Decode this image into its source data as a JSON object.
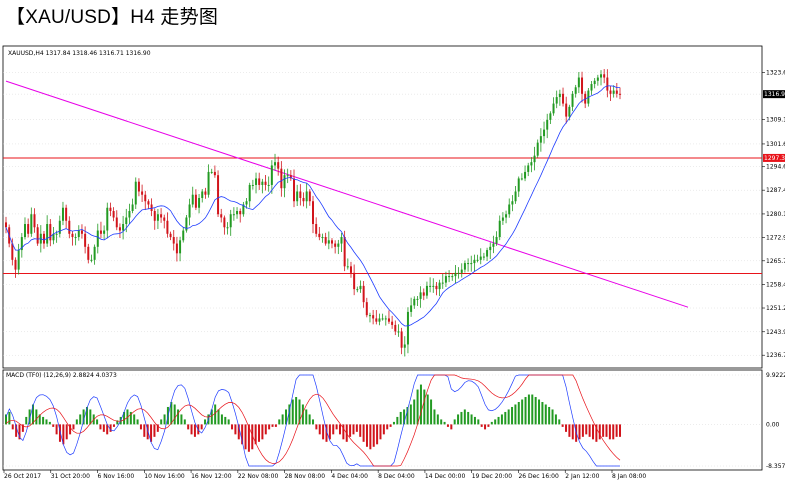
{
  "title": "【XAU/USD】H4 走势图",
  "chart_data": {
    "type": "candlestick",
    "symbol_header": "XAUUSD,H4  1317.84  1318.46  1316.71  1316.90",
    "ohlc_header": {
      "open": 1317.84,
      "high": 1318.46,
      "low": 1316.71,
      "close": 1316.9
    },
    "price_axis": {
      "ticks": [
        "1323.6",
        "1316.90",
        "1309.1",
        "1301.6",
        "1294.6",
        "1287.4",
        "1280.1",
        "1272.9",
        "1265.7",
        "1258.4",
        "1251.2",
        "1243.9",
        "1236.7"
      ],
      "ylim": [
        1234.0,
        1328.0
      ],
      "last_price": "1316.90"
    },
    "time_axis": {
      "labels": [
        "26 Oct 2017",
        "31 Oct 20:00",
        "6 Nov 16:00",
        "10 Nov 16:00",
        "16 Nov 12:00",
        "22 Nov 08:00",
        "28 Nov 08:00",
        "4 Dec 04:00",
        "8 Dec 04:00",
        "14 Dec 00:00",
        "19 Dec 20:00",
        "26 Dec 16:00",
        "2 Jan 12:00",
        "8 Jan 08:00"
      ]
    },
    "horizontal_lines": [
      {
        "price": 1297.3,
        "label": "1297.3",
        "color": "#e8131a"
      },
      {
        "price": 1261.8,
        "color": "#e8131a"
      }
    ],
    "trendline": {
      "color": "#e800e8",
      "from": {
        "bar": 0,
        "price": 1320.9
      },
      "to": {
        "bar": 206,
        "price": 1254.5
      }
    },
    "moving_average": {
      "color": "#1f3dff"
    },
    "series": [
      {
        "name": "XAUUSD",
        "close": [
          1276,
          1271,
          1266,
          1263,
          1269,
          1273,
          1277,
          1274,
          1280,
          1276,
          1271,
          1274,
          1271,
          1277,
          1272,
          1274,
          1274,
          1278,
          1282,
          1278,
          1274,
          1273,
          1273,
          1275,
          1274,
          1270,
          1266,
          1266,
          1270,
          1275,
          1274,
          1275,
          1282,
          1281,
          1279,
          1276,
          1275,
          1277,
          1279,
          1281,
          1283,
          1290,
          1287,
          1286,
          1284,
          1283,
          1281,
          1278,
          1280,
          1279,
          1278,
          1274,
          1273,
          1271,
          1268,
          1272,
          1275,
          1279,
          1283,
          1286,
          1282,
          1285,
          1287,
          1286,
          1293,
          1293,
          1292,
          1280,
          1279,
          1276,
          1276,
          1280,
          1280,
          1281,
          1280,
          1283,
          1284,
          1289,
          1289,
          1291,
          1289,
          1290,
          1289,
          1289,
          1295,
          1296,
          1294,
          1288,
          1292,
          1292,
          1291,
          1284,
          1287,
          1285,
          1284,
          1287,
          1284,
          1277,
          1274,
          1273,
          1273,
          1271,
          1272,
          1271,
          1270,
          1271,
          1273,
          1264,
          1264,
          1262,
          1257,
          1257,
          1258,
          1253,
          1249,
          1249,
          1248,
          1247,
          1248,
          1248,
          1248,
          1247,
          1246,
          1244,
          1244,
          1239,
          1240,
          1250,
          1252,
          1254,
          1254,
          1256,
          1255,
          1258,
          1258,
          1258,
          1257,
          1259,
          1259,
          1261,
          1261,
          1261,
          1262,
          1262,
          1263,
          1265,
          1265,
          1265,
          1266,
          1266,
          1267,
          1267,
          1269,
          1270,
          1271,
          1273,
          1278,
          1279,
          1280,
          1283,
          1284,
          1287,
          1291,
          1291,
          1293,
          1295,
          1296,
          1298,
          1302,
          1304,
          1306,
          1309,
          1311,
          1314,
          1316,
          1317,
          1314,
          1310,
          1313,
          1317,
          1319,
          1322,
          1317,
          1314,
          1318,
          1320,
          1321,
          1322,
          1323,
          1322,
          1318,
          1317,
          1318,
          1317,
          1316.9
        ]
      }
    ],
    "macd": {
      "label": "MACD (TF0) (12,26,9) 2.8824 4.0373",
      "axis_ticks": [
        "9.9222",
        "0.00",
        "-8.357"
      ],
      "ylim": [
        -8.357,
        9.9222
      ],
      "hist": [
        2.0,
        2.5,
        -1.0,
        -2.5,
        -3.0,
        -1.5,
        1.5,
        3.0,
        4.0,
        3.0,
        2.0,
        1.5,
        1.0,
        0.5,
        -0.5,
        -2.0,
        -3.5,
        -4.0,
        -3.0,
        -2.0,
        -1.0,
        1.0,
        2.0,
        3.0,
        3.5,
        3.0,
        2.0,
        1.0,
        -1.0,
        -1.5,
        -2.0,
        -1.5,
        -0.5,
        0.8,
        1.5,
        2.5,
        3.0,
        2.5,
        2.0,
        1.0,
        -1.0,
        -2.5,
        -3.0,
        -3.5,
        -2.5,
        -1.5,
        1.0,
        2.0,
        3.5,
        4.5,
        4.0,
        3.0,
        2.0,
        1.0,
        -1.0,
        -2.0,
        -2.5,
        -2.0,
        -1.0,
        1.0,
        2.0,
        3.0,
        4.0,
        3.0,
        2.0,
        1.5,
        1.0,
        -1.0,
        -2.0,
        -3.0,
        -4.0,
        -5.0,
        -5.5,
        -5.0,
        -4.0,
        -3.5,
        -3.0,
        -2.0,
        -1.0,
        -0.5,
        -0.5,
        1.0,
        2.0,
        3.0,
        4.0,
        5.0,
        5.5,
        5.0,
        4.0,
        3.0,
        2.0,
        1.0,
        -1.0,
        -2.0,
        -3.0,
        -3.5,
        -3.0,
        -2.0,
        -1.0,
        -2.0,
        -3.0,
        -3.5,
        -2.5,
        -2.0,
        -1.5,
        -2.5,
        -3.5,
        -4.5,
        -5.0,
        -4.5,
        -4.0,
        -3.0,
        -2.0,
        -1.0,
        -0.5,
        0.5,
        1.5,
        2.5,
        3.0,
        3.5,
        4.0,
        5.0,
        7.0,
        8.0,
        7.0,
        6.0,
        5.0,
        3.0,
        2.0,
        1.0,
        0.5,
        -0.5,
        -1.0,
        1.0,
        2.0,
        2.5,
        3.0,
        2.5,
        2.0,
        1.5,
        1.0,
        -0.5,
        -1.0,
        -0.5,
        0.5,
        1.0,
        1.5,
        2.0,
        2.5,
        3.0,
        3.5,
        4.0,
        4.5,
        5.0,
        5.5,
        6.0,
        6.0,
        5.5,
        5.0,
        4.5,
        4.0,
        3.5,
        3.0,
        2.0,
        1.0,
        -0.5,
        -1.5,
        -2.5,
        -3.0,
        -3.5,
        -3.0,
        -2.5,
        -2.0,
        -2.5,
        -3.0,
        -3.5,
        -3.0,
        -2.5,
        -2.5,
        -3.0,
        -3.0,
        -2.5,
        -2.5
      ],
      "macd_line_color": "#1f3dff",
      "signal_line_color": "#e8131a"
    }
  }
}
